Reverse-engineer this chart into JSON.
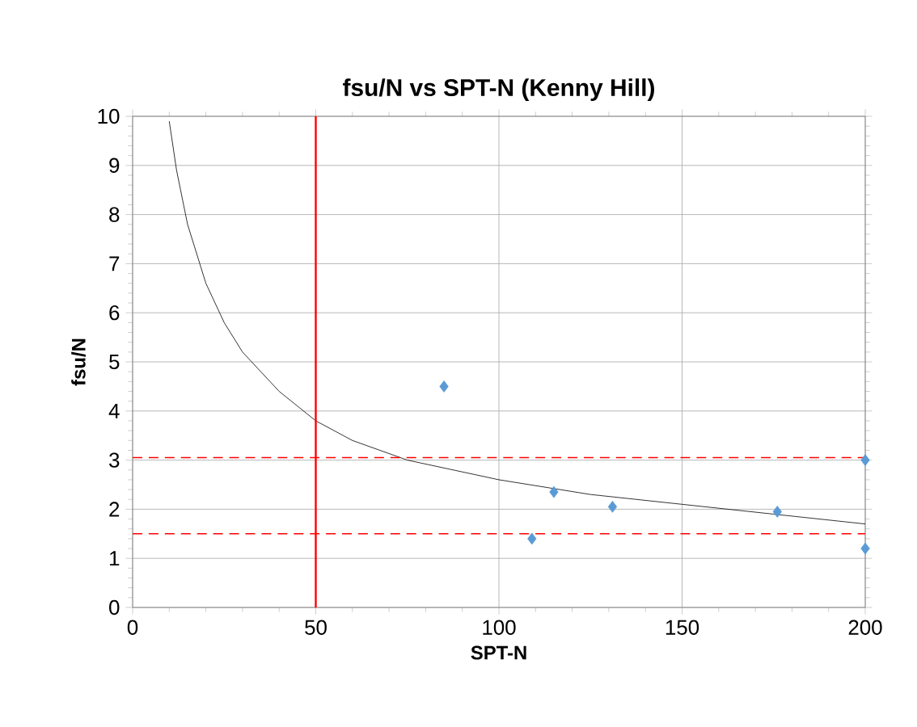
{
  "chart_data": {
    "type": "scatter",
    "title": "fsu/N vs SPT-N (Kenny Hill)",
    "xlabel": "SPT-N",
    "ylabel": "fsu/N",
    "xlim": [
      0,
      200
    ],
    "ylim": [
      0,
      10
    ],
    "xticks": [
      0,
      50,
      100,
      150,
      200
    ],
    "yticks": [
      0,
      1,
      2,
      3,
      4,
      5,
      6,
      7,
      8,
      9,
      10
    ],
    "grid": true,
    "marker": "diamond",
    "series": [
      {
        "color": "#5b9bd5",
        "x": [
          85,
          109,
          115,
          131,
          176,
          200,
          200
        ],
        "values": [
          4.5,
          1.4,
          2.35,
          2.05,
          1.95,
          3.0,
          1.2
        ]
      },
      {
        "type": "line",
        "color": "#000000",
        "marker": "none",
        "x": [
          10,
          12,
          15,
          20,
          25,
          30,
          40,
          50,
          60,
          75,
          100,
          125,
          150,
          175,
          200
        ],
        "values": [
          9.9,
          8.9,
          7.8,
          6.6,
          5.8,
          5.2,
          4.4,
          3.8,
          3.4,
          3.0,
          2.6,
          2.3,
          2.1,
          1.9,
          1.7
        ]
      }
    ],
    "ref_lines": [
      {
        "axis": "x",
        "value": 50,
        "color": "#ff0000",
        "line_style": "solid"
      },
      {
        "axis": "y",
        "value": 3.05,
        "color": "#ff0000",
        "line_style": "dashed"
      },
      {
        "axis": "y",
        "value": 1.5,
        "color": "#ff0000",
        "line_style": "dashed"
      }
    ]
  }
}
